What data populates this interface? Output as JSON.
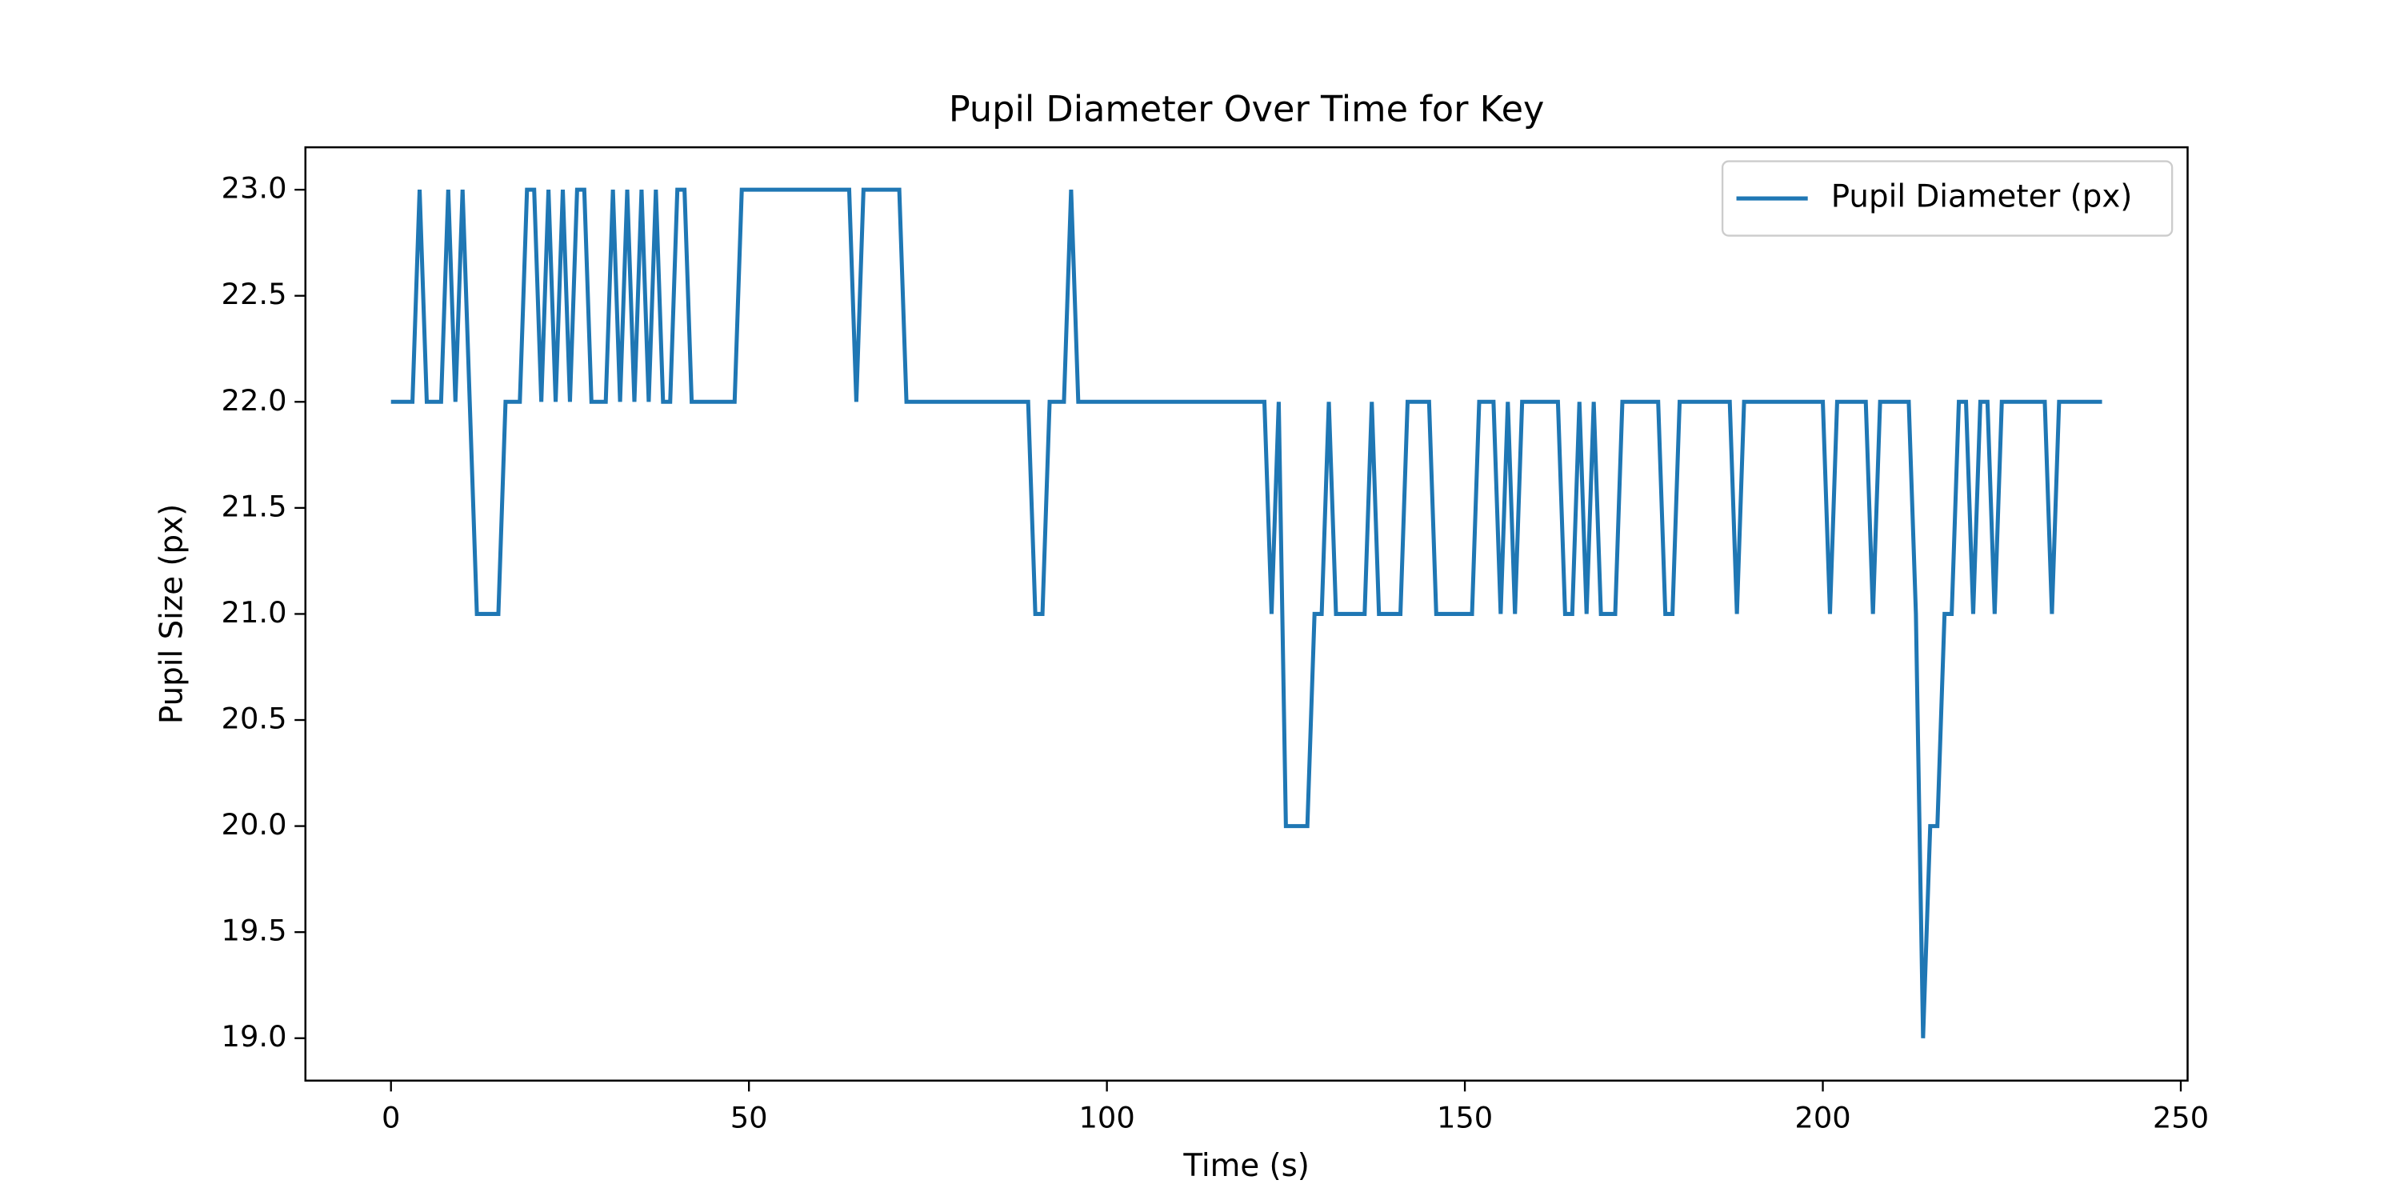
{
  "chart_data": {
    "type": "line",
    "title": "Pupil Diameter Over Time for Key",
    "x_label": "Time (s)",
    "y_label": "Pupil Size (px)",
    "x": [
      0,
      1,
      2,
      3,
      4,
      5,
      6,
      7,
      8,
      9,
      10,
      11,
      12,
      13,
      14,
      15,
      16,
      17,
      18,
      19,
      20,
      21,
      22,
      23,
      24,
      25,
      26,
      27,
      28,
      29,
      30,
      31,
      32,
      33,
      34,
      35,
      36,
      37,
      38,
      39,
      40,
      41,
      42,
      43,
      44,
      45,
      46,
      47,
      48,
      49,
      50,
      51,
      52,
      53,
      54,
      55,
      56,
      57,
      58,
      59,
      60,
      61,
      62,
      63,
      64,
      65,
      66,
      67,
      68,
      69,
      70,
      71,
      72,
      73,
      74,
      75,
      76,
      77,
      78,
      79,
      80,
      81,
      82,
      83,
      84,
      85,
      86,
      87,
      88,
      89,
      90,
      91,
      92,
      93,
      94,
      95,
      96,
      97,
      98,
      99,
      100,
      101,
      102,
      103,
      104,
      105,
      106,
      107,
      108,
      109,
      110,
      111,
      112,
      113,
      114,
      115,
      116,
      117,
      118,
      119,
      120,
      121,
      122,
      123,
      124,
      125,
      126,
      127,
      128,
      129,
      130,
      131,
      132,
      133,
      134,
      135,
      136,
      137,
      138,
      139,
      140,
      141,
      142,
      143,
      144,
      145,
      146,
      147,
      148,
      149,
      150,
      151,
      152,
      153,
      154,
      155,
      156,
      157,
      158,
      159,
      160,
      161,
      162,
      163,
      164,
      165,
      166,
      167,
      168,
      169,
      170,
      171,
      172,
      173,
      174,
      175,
      176,
      177,
      178,
      179,
      180,
      181,
      182,
      183,
      184,
      185,
      186,
      187,
      188,
      189,
      190,
      191,
      192,
      193,
      194,
      195,
      196,
      197,
      198,
      199,
      200,
      201,
      202,
      203,
      204,
      205,
      206,
      207,
      208,
      209,
      210,
      211,
      212,
      213,
      214,
      215,
      216,
      217,
      218,
      219,
      220,
      221,
      222,
      223,
      224,
      225,
      226,
      227,
      228,
      229,
      230,
      231,
      232,
      233,
      234,
      235,
      236,
      237,
      238,
      239
    ],
    "series": [
      {
        "name": "Pupil Diameter (px)",
        "color": "#1f77b4",
        "values": [
          22,
          22,
          22,
          22,
          23,
          22,
          22,
          22,
          23,
          22,
          23,
          22,
          21,
          21,
          21,
          21,
          22,
          22,
          22,
          23,
          23,
          22,
          23,
          22,
          23,
          22,
          23,
          23,
          22,
          22,
          22,
          23,
          22,
          23,
          22,
          23,
          22,
          23,
          22,
          22,
          23,
          23,
          22,
          22,
          22,
          22,
          22,
          22,
          22,
          23,
          23,
          23,
          23,
          23,
          23,
          23,
          23,
          23,
          23,
          23,
          23,
          23,
          23,
          23,
          23,
          22,
          23,
          23,
          23,
          23,
          23,
          23,
          22,
          22,
          22,
          22,
          22,
          22,
          22,
          22,
          22,
          22,
          22,
          22,
          22,
          22,
          22,
          22,
          22,
          22,
          21,
          21,
          22,
          22,
          22,
          23,
          22,
          22,
          22,
          22,
          22,
          22,
          22,
          22,
          22,
          22,
          22,
          22,
          22,
          22,
          22,
          22,
          22,
          22,
          22,
          22,
          22,
          22,
          22,
          22,
          22,
          22,
          22,
          21,
          22,
          20,
          20,
          20,
          20,
          21,
          21,
          22,
          21,
          21,
          21,
          21,
          21,
          22,
          21,
          21,
          21,
          21,
          22,
          22,
          22,
          22,
          21,
          21,
          21,
          21,
          21,
          21,
          22,
          22,
          22,
          21,
          22,
          21,
          22,
          22,
          22,
          22,
          22,
          22,
          21,
          21,
          22,
          21,
          22,
          21,
          21,
          21,
          22,
          22,
          22,
          22,
          22,
          22,
          21,
          21,
          22,
          22,
          22,
          22,
          22,
          22,
          22,
          22,
          21,
          22,
          22,
          22,
          22,
          22,
          22,
          22,
          22,
          22,
          22,
          22,
          22,
          21,
          22,
          22,
          22,
          22,
          22,
          21,
          22,
          22,
          22,
          22,
          22,
          21,
          19,
          20,
          20,
          21,
          21,
          22,
          22,
          21,
          22,
          22,
          21,
          22,
          22,
          22,
          22,
          22,
          22,
          22,
          21,
          22,
          22,
          22,
          22,
          22,
          22,
          22
        ]
      }
    ],
    "xlim": [
      -11.95,
      250.95
    ],
    "ylim": [
      18.8,
      23.2
    ],
    "xticks": [
      0,
      50,
      100,
      150,
      200,
      250
    ],
    "yticks": [
      {
        "value": 19,
        "label": "19.0"
      },
      {
        "value": 19.5,
        "label": "19.5"
      },
      {
        "value": 20,
        "label": "20.0"
      },
      {
        "value": 20.5,
        "label": "20.5"
      },
      {
        "value": 21,
        "label": "21.0"
      },
      {
        "value": 21.5,
        "label": "21.5"
      },
      {
        "value": 22,
        "label": "22.0"
      },
      {
        "value": 22.5,
        "label": "22.5"
      },
      {
        "value": 23,
        "label": "23.0"
      }
    ],
    "legend": "upper right",
    "grid": false
  }
}
